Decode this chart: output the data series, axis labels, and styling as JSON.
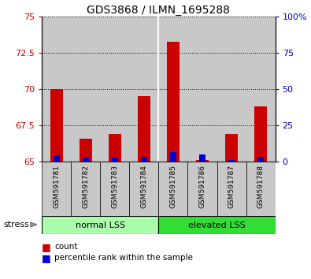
{
  "title": "GDS3868 / ILMN_1695288",
  "samples": [
    "GSM591781",
    "GSM591782",
    "GSM591783",
    "GSM591784",
    "GSM591785",
    "GSM591786",
    "GSM591787",
    "GSM591788"
  ],
  "red_values": [
    70.0,
    66.6,
    66.9,
    69.5,
    73.3,
    65.1,
    66.9,
    68.8
  ],
  "blue_values_pct": [
    4.5,
    3.0,
    3.0,
    3.2,
    6.5,
    4.8,
    1.5,
    3.3
  ],
  "ylim_left": [
    65,
    75
  ],
  "yticks_left": [
    65,
    67.5,
    70,
    72.5,
    75
  ],
  "ylim_right": [
    0,
    100
  ],
  "yticks_right": [
    0,
    25,
    50,
    75,
    100
  ],
  "ytick_labels_right": [
    "0",
    "25",
    "50",
    "75",
    "100%"
  ],
  "groups": [
    {
      "label": "normal LSS",
      "indices": [
        0,
        1,
        2,
        3
      ],
      "color": "#AAFFAA"
    },
    {
      "label": "elevated LSS",
      "indices": [
        4,
        5,
        6,
        7
      ],
      "color": "#33DD33"
    }
  ],
  "bar_width": 0.45,
  "blue_bar_width": 0.2,
  "red_color": "#CC0000",
  "blue_color": "#0000CC",
  "left_tick_color": "#CC0000",
  "right_tick_color": "#0000BB",
  "title_fontsize": 10,
  "bar_bg_color": "#C8C8C8",
  "stress_label": "stress",
  "legend_items": [
    "count",
    "percentile rank within the sample"
  ],
  "grid_color": "black",
  "base": 65
}
